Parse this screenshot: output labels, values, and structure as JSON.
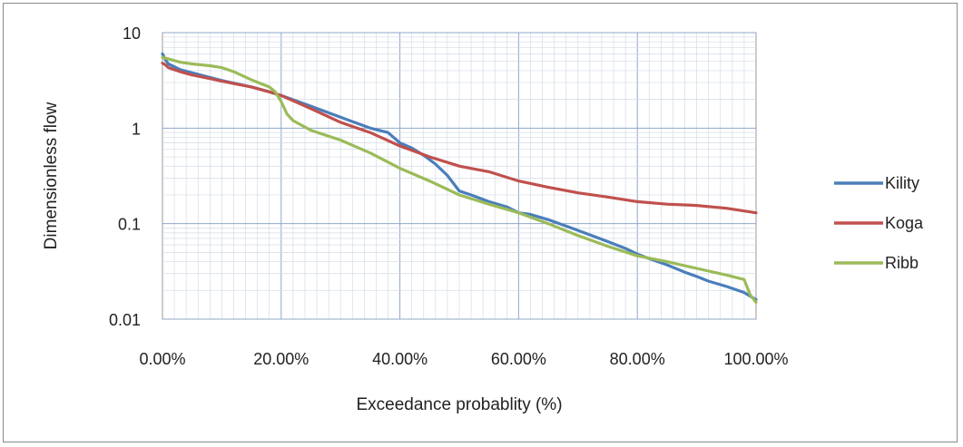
{
  "chart_data": {
    "type": "line",
    "title": "",
    "xlabel": "Exceedance probablity (%)",
    "ylabel": "Dimensionless flow",
    "xlim": [
      0,
      100
    ],
    "ylim": [
      0.01,
      10
    ],
    "yscale": "log",
    "grid": true,
    "legend_position": "right",
    "x_tick_labels": [
      "0.00%",
      "20.00%",
      "40.00%",
      "60.00%",
      "80.00%",
      "100.00%"
    ],
    "x_ticks": [
      0,
      20,
      40,
      60,
      80,
      100
    ],
    "y_tick_labels": [
      "10",
      "1",
      "0.1",
      "0.01"
    ],
    "y_ticks": [
      10,
      1,
      0.1,
      0.01
    ],
    "series": [
      {
        "name": "Kility",
        "color": "#4a7ebb",
        "x": [
          0,
          0.5,
          1,
          3,
          5,
          8,
          10,
          15,
          18,
          20,
          25,
          30,
          35,
          38,
          40,
          42,
          44,
          46,
          48,
          50,
          52,
          55,
          58,
          60,
          62,
          65,
          70,
          75,
          78,
          80,
          82,
          85,
          88,
          90,
          92,
          95,
          98,
          100
        ],
        "y": [
          6.0,
          5.2,
          4.7,
          4.1,
          3.8,
          3.4,
          3.15,
          2.7,
          2.4,
          2.2,
          1.7,
          1.3,
          1.0,
          0.9,
          0.7,
          0.62,
          0.52,
          0.42,
          0.32,
          0.22,
          0.2,
          0.17,
          0.15,
          0.13,
          0.125,
          0.11,
          0.085,
          0.065,
          0.055,
          0.048,
          0.043,
          0.037,
          0.031,
          0.028,
          0.025,
          0.022,
          0.019,
          0.016
        ]
      },
      {
        "name": "Koga",
        "color": "#c0504d",
        "x": [
          0,
          0.5,
          1,
          3,
          5,
          8,
          10,
          15,
          18,
          20,
          25,
          30,
          35,
          40,
          45,
          50,
          55,
          60,
          65,
          70,
          75,
          80,
          85,
          90,
          95,
          100
        ],
        "y": [
          4.8,
          4.6,
          4.3,
          3.9,
          3.6,
          3.3,
          3.1,
          2.7,
          2.4,
          2.2,
          1.6,
          1.15,
          0.9,
          0.65,
          0.5,
          0.4,
          0.35,
          0.28,
          0.24,
          0.21,
          0.19,
          0.17,
          0.16,
          0.155,
          0.145,
          0.13
        ]
      },
      {
        "name": "Ribb",
        "color": "#9bbb59",
        "x": [
          0,
          1,
          3,
          5,
          8,
          10,
          12,
          15,
          18,
          19,
          20,
          21,
          22,
          25,
          30,
          35,
          40,
          45,
          50,
          55,
          60,
          65,
          70,
          75,
          80,
          85,
          90,
          95,
          98,
          99,
          100
        ],
        "y": [
          5.5,
          5.3,
          4.9,
          4.7,
          4.5,
          4.3,
          3.9,
          3.2,
          2.7,
          2.4,
          1.9,
          1.4,
          1.2,
          0.95,
          0.75,
          0.55,
          0.38,
          0.28,
          0.2,
          0.16,
          0.13,
          0.1,
          0.075,
          0.058,
          0.046,
          0.04,
          0.034,
          0.029,
          0.026,
          0.018,
          0.015
        ]
      }
    ]
  }
}
